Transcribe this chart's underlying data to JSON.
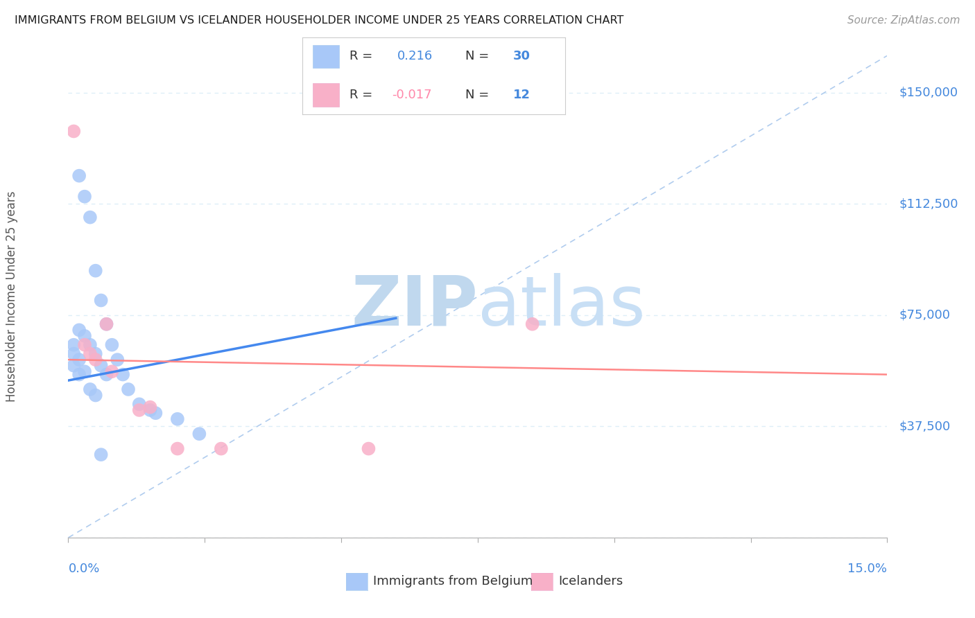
{
  "title": "IMMIGRANTS FROM BELGIUM VS ICELANDER HOUSEHOLDER INCOME UNDER 25 YEARS CORRELATION CHART",
  "source": "Source: ZipAtlas.com",
  "ylabel": "Householder Income Under 25 years",
  "legend_label1": "Immigrants from Belgium",
  "legend_label2": "Icelanders",
  "legend_r1_val": "0.216",
  "legend_n1_val": "30",
  "legend_r2_val": "-0.017",
  "legend_n2_val": "12",
  "color_blue": "#a8c8f8",
  "color_pink": "#f8b0c8",
  "line_blue": "#4488ee",
  "line_pink": "#ff8888",
  "watermark_color": "#c8dff5",
  "ylim": [
    0,
    162500
  ],
  "xlim": [
    0.0,
    0.15
  ],
  "yticks": [
    0,
    37500,
    75000,
    112500,
    150000
  ],
  "ytick_labels": [
    "",
    "$37,500",
    "$75,000",
    "$112,500",
    "$150,000"
  ],
  "background_color": "#ffffff",
  "grid_color": "#ddeef8",
  "blue_points_x": [
    0.001,
    0.001,
    0.001,
    0.002,
    0.002,
    0.002,
    0.002,
    0.003,
    0.003,
    0.003,
    0.004,
    0.004,
    0.004,
    0.005,
    0.005,
    0.005,
    0.006,
    0.006,
    0.007,
    0.007,
    0.008,
    0.009,
    0.01,
    0.011,
    0.013,
    0.015,
    0.016,
    0.02,
    0.024,
    0.006
  ],
  "blue_points_y": [
    65000,
    62000,
    58000,
    122000,
    70000,
    60000,
    55000,
    115000,
    68000,
    56000,
    108000,
    65000,
    50000,
    90000,
    62000,
    48000,
    80000,
    58000,
    72000,
    55000,
    65000,
    60000,
    55000,
    50000,
    45000,
    43000,
    42000,
    40000,
    35000,
    28000
  ],
  "pink_points_x": [
    0.001,
    0.003,
    0.004,
    0.005,
    0.007,
    0.008,
    0.015,
    0.02,
    0.055,
    0.085
  ],
  "pink_points_y": [
    137000,
    65000,
    62000,
    60000,
    72000,
    56000,
    44000,
    30000,
    30000,
    72000
  ],
  "pink_points2_x": [
    0.013,
    0.028
  ],
  "pink_points2_y": [
    43000,
    30000
  ],
  "blue_line_x": [
    0.0,
    0.06
  ],
  "blue_line_y": [
    53000,
    74000
  ],
  "pink_line_x": [
    0.0,
    0.15
  ],
  "pink_line_y": [
    60000,
    55000
  ],
  "dashed_line_x": [
    0.0,
    0.15
  ],
  "dashed_line_y": [
    0,
    162500
  ]
}
